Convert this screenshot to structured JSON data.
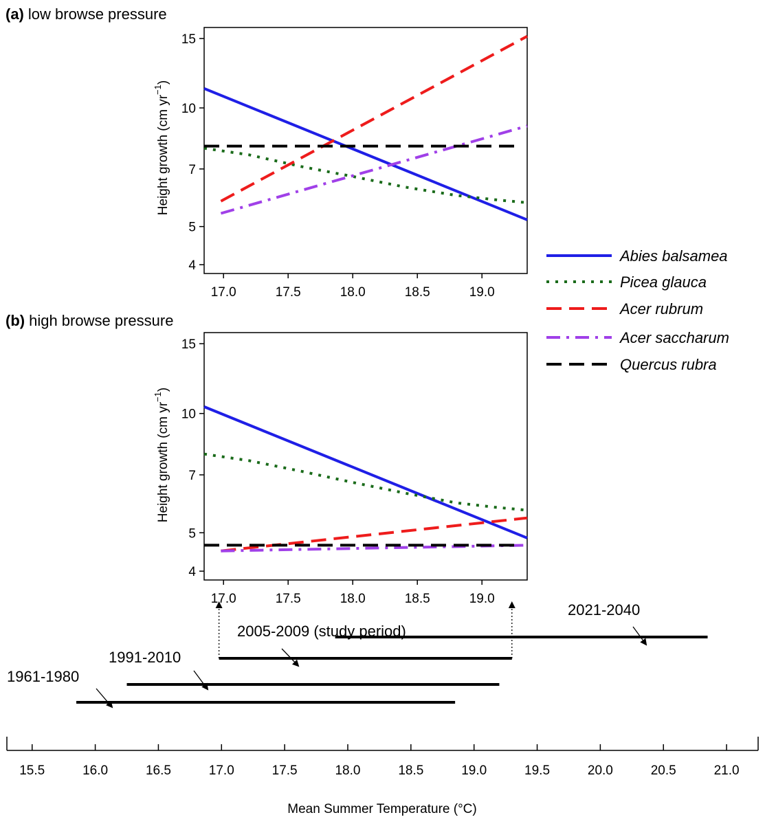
{
  "chart_data": [
    {
      "type": "line",
      "panel_label": "(a)",
      "title": "low browse pressure",
      "ylabel": "Height growth (cm yr",
      "ylabel_sup": "−1",
      "ylabel_close": ")",
      "y_scale": "log",
      "ylim": [
        3.8,
        16
      ],
      "xlim": [
        16.85,
        19.35
      ],
      "yticks": [
        4,
        5,
        7,
        10,
        15
      ],
      "xticks": [
        "17.0",
        "17.5",
        "18.0",
        "18.5",
        "19.0"
      ],
      "series": [
        {
          "name": "Abies balsamea",
          "x": [
            16.85,
            19.35
          ],
          "y": [
            11.2,
            5.2
          ]
        },
        {
          "name": "Picea glauca",
          "x": [
            16.85,
            17.2,
            17.6,
            18.0,
            18.4,
            18.8,
            19.1,
            19.35
          ],
          "y": [
            7.9,
            7.6,
            7.1,
            6.7,
            6.3,
            6.0,
            5.85,
            5.75
          ]
        },
        {
          "name": "Acer rubrum",
          "x": [
            16.98,
            19.35
          ],
          "y": [
            5.8,
            15.2
          ]
        },
        {
          "name": "Acer saccharum",
          "x": [
            16.98,
            19.35
          ],
          "y": [
            5.4,
            9.0
          ]
        },
        {
          "name": "Quercus rubra",
          "x": [
            16.85,
            19.25
          ],
          "y": [
            8.0,
            8.0
          ]
        }
      ]
    },
    {
      "type": "line",
      "panel_label": "(b)",
      "title": "high browse pressure",
      "ylabel": "Height growth (cm yr",
      "ylabel_sup": "−1",
      "ylabel_close": ")",
      "y_scale": "log",
      "ylim": [
        3.8,
        16
      ],
      "xlim": [
        16.85,
        19.35
      ],
      "yticks": [
        4,
        5,
        7,
        10,
        15
      ],
      "xticks": [
        "17.0",
        "17.5",
        "18.0",
        "18.5",
        "19.0"
      ],
      "series": [
        {
          "name": "Abies balsamea",
          "x": [
            16.85,
            19.35
          ],
          "y": [
            10.4,
            4.85
          ]
        },
        {
          "name": "Picea glauca",
          "x": [
            16.85,
            17.2,
            17.6,
            18.0,
            18.4,
            18.8,
            19.1,
            19.35
          ],
          "y": [
            7.9,
            7.6,
            7.15,
            6.7,
            6.3,
            5.95,
            5.8,
            5.7
          ]
        },
        {
          "name": "Acer rubrum",
          "x": [
            16.98,
            19.35
          ],
          "y": [
            4.5,
            5.45
          ]
        },
        {
          "name": "Acer saccharum",
          "x": [
            16.98,
            19.35
          ],
          "y": [
            4.5,
            4.65
          ]
        },
        {
          "name": "Quercus rubra",
          "x": [
            16.85,
            19.25
          ],
          "y": [
            4.65,
            4.65
          ]
        }
      ]
    },
    {
      "type": "bar",
      "xlabel": "Mean Summer Temperature (°C)",
      "xlim": [
        15.3,
        21.25
      ],
      "xticks": [
        "15.5",
        "16.0",
        "16.5",
        "17.0",
        "17.5",
        "18.0",
        "18.5",
        "19.0",
        "19.5",
        "20.0",
        "20.5",
        "21.0"
      ],
      "ranges": [
        {
          "label": "1961-1980",
          "from": 15.85,
          "to": 18.85
        },
        {
          "label": "1991-2010",
          "from": 16.25,
          "to": 19.2
        },
        {
          "label": "2005-2009 (study period)",
          "from": 16.98,
          "to": 19.3
        },
        {
          "label": "2021-2040",
          "from": 17.9,
          "to": 20.85
        }
      ]
    }
  ],
  "legend": [
    {
      "name": "Abies balsamea",
      "color": "#1f1fe6",
      "style": "solid"
    },
    {
      "name": "Picea glauca",
      "color": "#1a6b1a",
      "style": "dotted"
    },
    {
      "name": "Acer rubrum",
      "color": "#ee1c1c",
      "style": "dashed"
    },
    {
      "name": "Acer saccharum",
      "color": "#a040e8",
      "style": "dashdot"
    },
    {
      "name": "Quercus rubra",
      "color": "#000000",
      "style": "dashed"
    }
  ]
}
